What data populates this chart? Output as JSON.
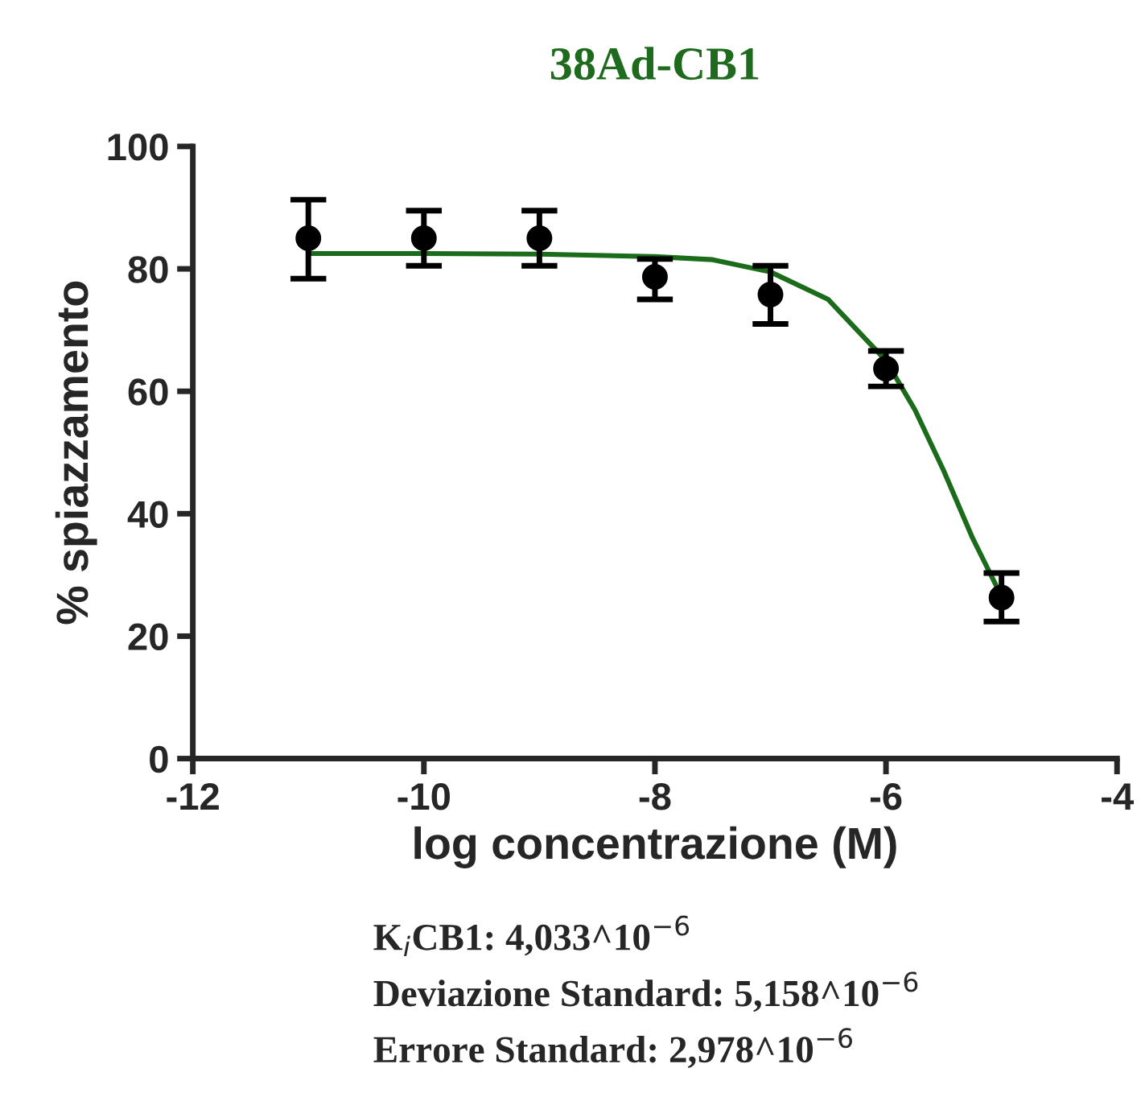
{
  "chart_data": {
    "type": "scatter",
    "title": "38Ad-CB1",
    "xlabel": "log concentrazione (M)",
    "ylabel": "% spiazzamento",
    "xlim": [
      -12,
      -4
    ],
    "ylim": [
      0,
      100
    ],
    "xticks": [
      -12,
      -10,
      -8,
      -6,
      -4
    ],
    "yticks": [
      0,
      20,
      40,
      60,
      80,
      100
    ],
    "grid": false,
    "legend": false,
    "marker": "circle",
    "series": [
      {
        "color": "#000000",
        "x": [
          -11,
          -10,
          -9,
          -8,
          -7,
          -6,
          -5
        ],
        "values": [
          85,
          85,
          85,
          78.7,
          75.8,
          63.7,
          26.3
        ],
        "errors": [
          [
            78.4,
            91.3
          ],
          [
            80.5,
            89.5
          ],
          [
            80.5,
            89.5
          ],
          [
            75,
            81.6
          ],
          [
            71,
            80.5
          ],
          [
            60.8,
            66.6
          ],
          [
            22.4,
            30.3
          ]
        ]
      },
      {
        "type": "line",
        "color": "#1a6b1a",
        "marker": "none",
        "line_style": "solid",
        "x": [
          -11,
          -10,
          -9,
          -8,
          -7.5,
          -7,
          -6.5,
          -6,
          -5.75,
          -5.5,
          -5.25,
          -5
        ],
        "values": [
          82.5,
          82.5,
          82.4,
          82,
          81.5,
          79.5,
          75,
          65,
          57,
          47,
          36,
          26.5
        ]
      }
    ],
    "annotations": [
      "K$_{i}$CB1: 4,033^10$^{−6}$",
      "Deviazione Standard: 5,158^10$^{−6}$",
      "Errore Standard: 2,978^10$^{−6}$"
    ]
  }
}
